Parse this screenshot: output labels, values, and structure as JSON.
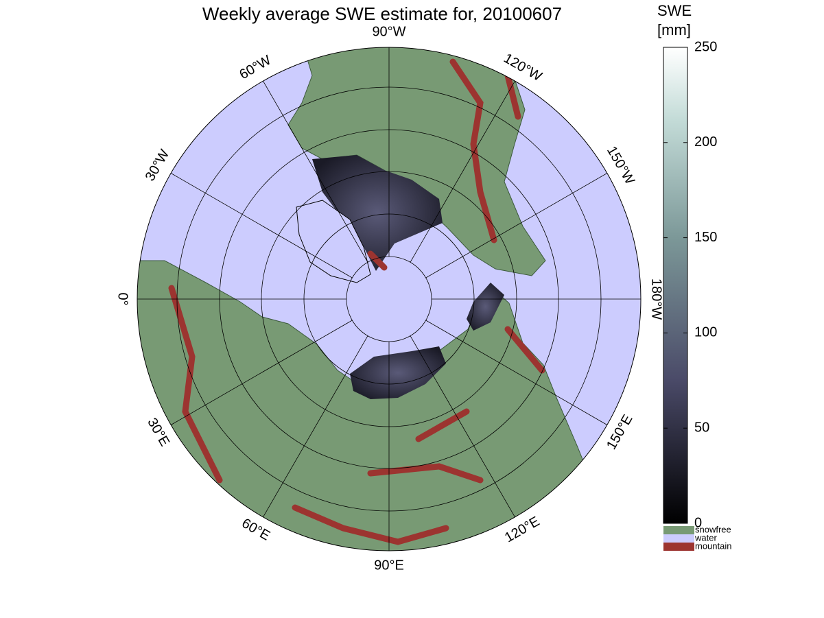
{
  "header": {
    "title": "Weekly average SWE estimate for, 20100607"
  },
  "map": {
    "projection": "north polar stereographic",
    "longitude_labels": [
      {
        "value": -90,
        "label": "90°W"
      },
      {
        "value": -60,
        "label": "60°W"
      },
      {
        "value": -30,
        "label": "30°W"
      },
      {
        "value": 0,
        "label": "0°"
      },
      {
        "value": 30,
        "label": "30°E"
      },
      {
        "value": 60,
        "label": "60°E"
      },
      {
        "value": 90,
        "label": "90°E"
      },
      {
        "value": 120,
        "label": "120°E"
      },
      {
        "value": 150,
        "label": "150°E"
      },
      {
        "value": 180,
        "label": "180°W"
      },
      {
        "value": -150,
        "label": "150°W"
      },
      {
        "value": -120,
        "label": "120°W"
      }
    ]
  },
  "colorbar": {
    "label": [
      "SWE",
      "[mm]"
    ],
    "lim": [
      0,
      250
    ],
    "ticks": [
      0,
      50,
      100,
      150,
      200,
      250
    ]
  },
  "legend": [
    {
      "label": "snowfree",
      "color": "#789a74"
    },
    {
      "label": "water",
      "color": "#ccccfe"
    },
    {
      "label": "mountain",
      "color": "#9c3430"
    }
  ]
}
